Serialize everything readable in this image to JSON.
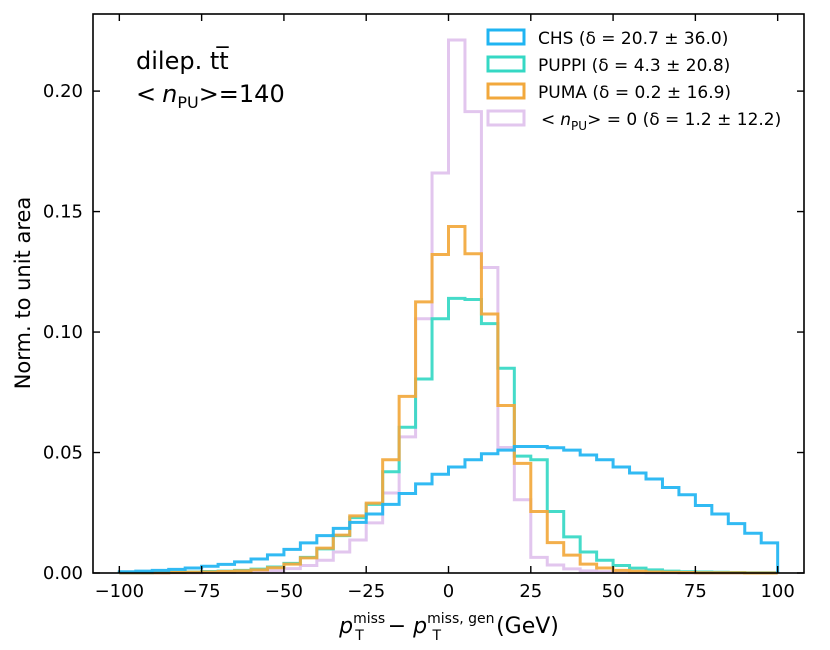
{
  "chart_data": {
    "type": "line",
    "subtype": "step-histogram",
    "title_line1": "dilep. tt̅",
    "title_line2_prefix": "<",
    "title_line2_var": "n",
    "title_line2_sub": "PU",
    "title_line2_suffix": ">=140",
    "xlabel_var": "p",
    "xlabel_sub": "T",
    "xlabel_sup": "miss",
    "xlabel_minus": " − ",
    "xlabel_var2": "p",
    "xlabel_sub2": "T",
    "xlabel_sup2": "miss, gen",
    "xlabel_unit": " (GeV)",
    "ylabel": "Norm. to unit area",
    "xlim": [
      -108,
      108
    ],
    "ylim": [
      0,
      0.232
    ],
    "bin_width": 5,
    "x_ticks": [
      {
        "value": -100,
        "label": "−100"
      },
      {
        "value": -75,
        "label": "−75"
      },
      {
        "value": -50,
        "label": "−50"
      },
      {
        "value": -25,
        "label": "−25"
      },
      {
        "value": 0,
        "label": "0"
      },
      {
        "value": 25,
        "label": "25"
      },
      {
        "value": 50,
        "label": "50"
      },
      {
        "value": 75,
        "label": "75"
      },
      {
        "value": 100,
        "label": "100"
      }
    ],
    "y_ticks": [
      {
        "value": 0,
        "label": "0.00"
      },
      {
        "value": 0.05,
        "label": "0.05"
      },
      {
        "value": 0.1,
        "label": "0.10"
      },
      {
        "value": 0.15,
        "label": "0.15"
      },
      {
        "value": 0.2,
        "label": "0.20"
      }
    ],
    "bin_edges": [
      -100,
      -95,
      -90,
      -85,
      -80,
      -75,
      -70,
      -65,
      -60,
      -55,
      -50,
      -45,
      -40,
      -35,
      -30,
      -25,
      -20,
      -15,
      -10,
      -5,
      0,
      5,
      10,
      15,
      20,
      25,
      30,
      35,
      40,
      45,
      50,
      55,
      60,
      65,
      70,
      75,
      80,
      85,
      90,
      95,
      100
    ],
    "series": [
      {
        "name": "CHS",
        "legend_label": "CHS (δ = 20.7 ± 36.0)",
        "color": "#1fb4f2",
        "values": [
          0.0005,
          0.0008,
          0.0011,
          0.0015,
          0.0021,
          0.0028,
          0.0036,
          0.0046,
          0.0058,
          0.0075,
          0.0098,
          0.0125,
          0.0155,
          0.0185,
          0.021,
          0.0245,
          0.0285,
          0.033,
          0.037,
          0.041,
          0.044,
          0.047,
          0.0495,
          0.051,
          0.0525,
          0.0525,
          0.052,
          0.051,
          0.049,
          0.047,
          0.044,
          0.0415,
          0.039,
          0.0355,
          0.0325,
          0.028,
          0.0245,
          0.0205,
          0.0165,
          0.0125
        ]
      },
      {
        "name": "PUPPI",
        "legend_label": "PUPPI (δ = 4.3 ± 20.8)",
        "color": "#35d8c4",
        "values": [
          0.0001,
          0.0001,
          0.0002,
          0.0003,
          0.0004,
          0.0006,
          0.0008,
          0.0011,
          0.0016,
          0.0025,
          0.004,
          0.0065,
          0.01,
          0.0155,
          0.023,
          0.0285,
          0.042,
          0.0605,
          0.0805,
          0.1055,
          0.114,
          0.1135,
          0.1035,
          0.085,
          0.0485,
          0.047,
          0.0255,
          0.015,
          0.0087,
          0.0053,
          0.0031,
          0.002,
          0.0013,
          0.0008,
          0.0005,
          0.0004,
          0.0003,
          0.0002,
          0.0001,
          0.0001
        ]
      },
      {
        "name": "PUMA",
        "legend_label": "PUMA (δ = 0.2 ± 16.9)",
        "color": "#f2a83c",
        "values": [
          0.0001,
          0.0001,
          0.0001,
          0.0002,
          0.0003,
          0.0004,
          0.0006,
          0.0009,
          0.0013,
          0.0022,
          0.0037,
          0.0063,
          0.0103,
          0.0157,
          0.0237,
          0.029,
          0.047,
          0.0733,
          0.1125,
          0.1322,
          0.1438,
          0.1325,
          0.1075,
          0.0695,
          0.0455,
          0.0255,
          0.0126,
          0.0074,
          0.0037,
          0.0021,
          0.0011,
          0.0007,
          0.0004,
          0.0003,
          0.0002,
          0.0001,
          0.0001,
          0.0001,
          0,
          0
        ]
      },
      {
        "name": "nPU0",
        "legend_prefix": "<",
        "legend_var": "n",
        "legend_sub": "PU",
        "legend_suffix": "> = 0 (δ = 1.2 ± 12.2)",
        "color": "#e2c6ee",
        "values": [
          0,
          0,
          0,
          0.0001,
          0.0001,
          0.0002,
          0.0003,
          0.0004,
          0.0006,
          0.001,
          0.0018,
          0.0031,
          0.0053,
          0.0087,
          0.0137,
          0.0208,
          0.0332,
          0.0565,
          0.1055,
          0.166,
          0.2212,
          0.1915,
          0.1268,
          0.0521,
          0.0304,
          0.0065,
          0.0033,
          0.0017,
          0.0009,
          0.0005,
          0.0003,
          0.0002,
          0.0001,
          0.0001,
          0,
          0,
          0,
          0,
          0,
          0
        ]
      }
    ]
  }
}
